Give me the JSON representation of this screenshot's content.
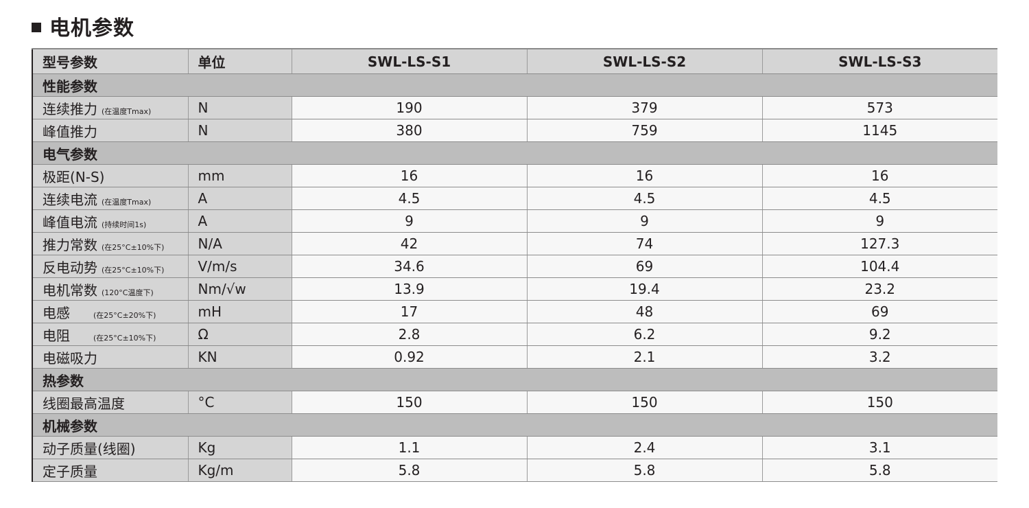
{
  "title": "电机参数",
  "header": {
    "param": "型号参数",
    "unit": "单位",
    "models": [
      "SWL-LS-S1",
      "SWL-LS-S2",
      "SWL-LS-S3"
    ]
  },
  "sections": [
    {
      "label": "性能参数",
      "rows": [
        {
          "name": "连续推力",
          "note": "(在温度Tmax)",
          "unit": "N",
          "values": [
            "190",
            "379",
            "573"
          ]
        },
        {
          "name": "峰值推力",
          "note": "",
          "unit": "N",
          "values": [
            "380",
            "759",
            "1145"
          ]
        }
      ]
    },
    {
      "label": "电气参数",
      "rows": [
        {
          "name": "极距(N-S)",
          "note": "",
          "unit": "mm",
          "values": [
            "16",
            "16",
            "16"
          ]
        },
        {
          "name": "连续电流",
          "note": "(在温度Tmax)",
          "unit": "A",
          "values": [
            "4.5",
            "4.5",
            "4.5"
          ]
        },
        {
          "name": "峰值电流",
          "note": "(持续时间1s)",
          "unit": "A",
          "values": [
            "9",
            "9",
            "9"
          ]
        },
        {
          "name": "推力常数",
          "note": "(在25°C±10%下)",
          "unit": "N/A",
          "values": [
            "42",
            "74",
            "127.3"
          ]
        },
        {
          "name": "反电动势",
          "note": "(在25°C±10%下)",
          "unit": "V/m/s",
          "values": [
            "34.6",
            "69",
            "104.4"
          ]
        },
        {
          "name": "电机常数",
          "note": "(120°C温度下)",
          "unit": "Nm/√w",
          "values": [
            "13.9",
            "19.4",
            "23.2"
          ]
        },
        {
          "name": "电感",
          "note": "(在25°C±20%下)",
          "unit": "mH",
          "values": [
            "17",
            "48",
            "69"
          ]
        },
        {
          "name": "电阻",
          "note": "(在25°C±10%下)",
          "unit": "Ω",
          "values": [
            "2.8",
            "6.2",
            "9.2"
          ]
        },
        {
          "name": "电磁吸力",
          "note": "",
          "unit": "KN",
          "values": [
            "0.92",
            "2.1",
            "3.2"
          ]
        }
      ]
    },
    {
      "label": "热参数",
      "rows": [
        {
          "name": "线圈最高温度",
          "note": "",
          "unit": "°C",
          "values": [
            "150",
            "150",
            "150"
          ]
        }
      ]
    },
    {
      "label": "机械参数",
      "rows": [
        {
          "name": "动子质量(线圈)",
          "note": "",
          "unit": "Kg",
          "values": [
            "1.1",
            "2.4",
            "3.1"
          ]
        },
        {
          "name": "定子质量",
          "note": "",
          "unit": "Kg/m",
          "values": [
            "5.8",
            "5.8",
            "5.8"
          ]
        }
      ]
    }
  ]
}
